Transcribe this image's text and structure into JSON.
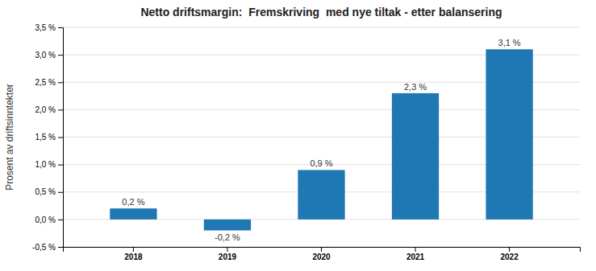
{
  "chart_data": {
    "type": "bar",
    "title": "Netto driftsmargin:  Fremskriving  med nye tiltak - etter balansering",
    "categories": [
      "2018",
      "2019",
      "2020",
      "2021",
      "2022"
    ],
    "values": [
      0.2,
      -0.2,
      0.9,
      2.3,
      3.1
    ],
    "value_labels": [
      "0,2 %",
      "-0,2 %",
      "0,9 %",
      "2,3 %",
      "3,1 %"
    ],
    "data_labels": true,
    "ylabel": "Prosent av driftsinntekter",
    "ylim": [
      -0.5,
      3.5
    ],
    "yticks": [
      {
        "value": -0.5,
        "label": "-0,5 %"
      },
      {
        "value": 0.0,
        "label": "0,0 %"
      },
      {
        "value": 0.5,
        "label": "0,5 %"
      },
      {
        "value": 1.0,
        "label": "1,0 %"
      },
      {
        "value": 1.5,
        "label": "1,5 %"
      },
      {
        "value": 2.0,
        "label": "2,0 %"
      },
      {
        "value": 2.5,
        "label": "2,5 %"
      },
      {
        "value": 3.0,
        "label": "3,0 %"
      },
      {
        "value": 3.5,
        "label": "3,5 %"
      }
    ],
    "grid": true
  }
}
